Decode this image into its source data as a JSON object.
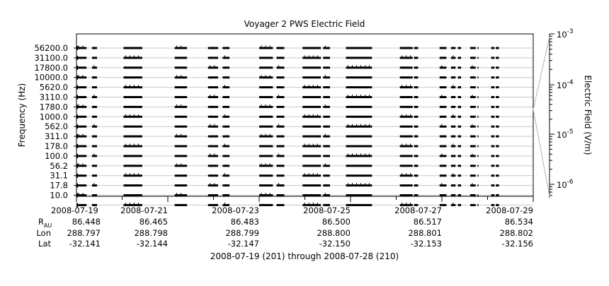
{
  "chart_data": {
    "type": "line",
    "title": "Voyager 2 PWS Electric Field",
    "ylabel": "Frequency (Hz)",
    "y2label": "Electric Field (V/m)",
    "frequency_channels": [
      "56200.0",
      "31100.0",
      "17800.0",
      "10000.0",
      "5620.0",
      "3110.0",
      "1780.0",
      "1000.0",
      "562.0",
      "311.0",
      "178.0",
      "100.0",
      "56.2",
      "31.1",
      "17.8",
      "10.0"
    ],
    "x_tick_labels": [
      "2008-07-19",
      "2008-07-21",
      "2008-07-23",
      "2008-07-25",
      "2008-07-27",
      "2008-07-29"
    ],
    "x_range_days": [
      0,
      10
    ],
    "y2_scale": "log",
    "y2_ticks": [
      "10^-3",
      "10^-4",
      "10^-5",
      "10^-6"
    ],
    "y2_tick_exponents": [
      -3,
      -4,
      -5,
      -6
    ],
    "data_segments_days": [
      [
        0.0,
        0.22
      ],
      [
        0.34,
        0.45
      ],
      [
        1.03,
        1.44
      ],
      [
        2.15,
        2.42
      ],
      [
        2.88,
        3.1
      ],
      [
        3.2,
        3.35
      ],
      [
        4.0,
        4.3
      ],
      [
        4.38,
        4.55
      ],
      [
        4.95,
        5.35
      ],
      [
        5.4,
        5.55
      ],
      [
        5.9,
        6.47
      ],
      [
        7.08,
        7.36
      ],
      [
        7.39,
        7.48
      ],
      [
        7.95,
        8.1
      ],
      [
        8.2,
        8.3
      ],
      [
        8.35,
        8.42
      ],
      [
        8.62,
        8.74
      ],
      [
        8.78,
        8.8
      ],
      [
        9.08,
        9.15
      ],
      [
        9.18,
        9.25
      ]
    ],
    "ephemeris": {
      "rows": [
        {
          "label": "R",
          "label_sub": "AU",
          "values": [
            "86.448",
            "86.465",
            "86.483",
            "86.500",
            "86.517",
            "86.534"
          ]
        },
        {
          "label": "Lon",
          "values": [
            "288.797",
            "288.798",
            "288.799",
            "288.800",
            "288.801",
            "288.802"
          ]
        },
        {
          "label": "Lat",
          "values": [
            "-32.141",
            "-32.144",
            "-32.147",
            "-32.150",
            "-32.153",
            "-32.156"
          ]
        }
      ]
    },
    "footer": "2008-07-19 (201) through 2008-07-28 (210)",
    "colors": {
      "trace": "#000000",
      "grid": "#c8c8c8",
      "axis": "#000000",
      "connector": "#b4b4b4"
    }
  }
}
